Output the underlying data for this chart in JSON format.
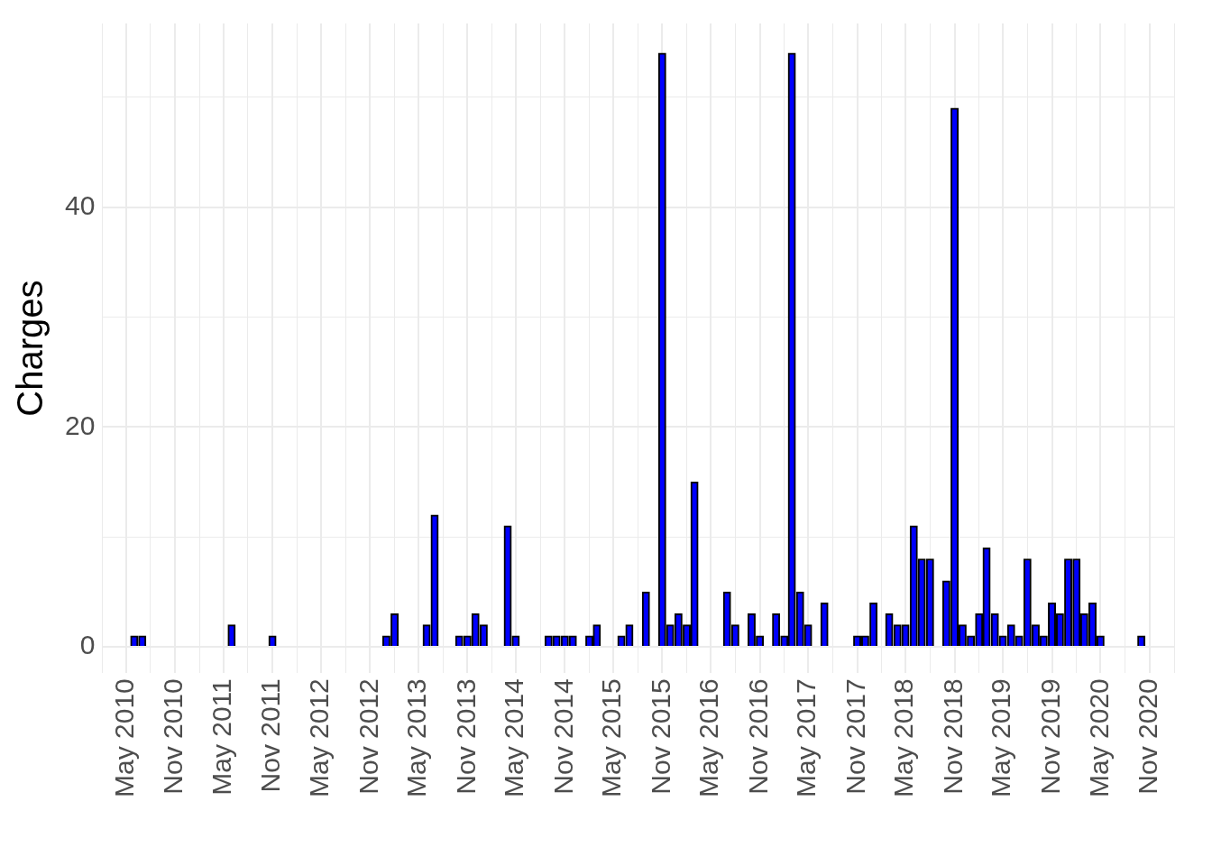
{
  "chart_data": {
    "type": "bar",
    "ylabel": "Charges",
    "color": "#0000ff",
    "grid": true,
    "legend": false,
    "x": [
      "2010-06",
      "2010-07",
      "2011-06",
      "2011-11",
      "2013-01",
      "2013-02",
      "2013-06",
      "2013-07",
      "2013-10",
      "2013-11",
      "2013-12",
      "2014-01",
      "2014-04",
      "2014-05",
      "2014-09",
      "2014-10",
      "2014-11",
      "2014-12",
      "2015-02",
      "2015-03",
      "2015-06",
      "2015-07",
      "2015-09",
      "2015-11",
      "2015-12",
      "2016-01",
      "2016-02",
      "2016-03",
      "2016-07",
      "2016-08",
      "2016-10",
      "2016-11",
      "2017-01",
      "2017-02",
      "2017-03",
      "2017-04",
      "2017-05",
      "2017-07",
      "2017-11",
      "2017-12",
      "2018-01",
      "2018-03",
      "2018-04",
      "2018-05",
      "2018-06",
      "2018-07",
      "2018-08",
      "2018-10",
      "2018-11",
      "2018-12",
      "2019-01",
      "2019-02",
      "2019-03",
      "2019-04",
      "2019-05",
      "2019-06",
      "2019-07",
      "2019-08",
      "2019-09",
      "2019-10",
      "2019-11",
      "2019-12",
      "2020-01",
      "2020-02",
      "2020-03",
      "2020-04",
      "2020-05",
      "2020-10"
    ],
    "values": [
      1,
      1,
      2,
      1,
      1,
      3,
      2,
      12,
      1,
      1,
      3,
      2,
      11,
      1,
      1,
      1,
      1,
      1,
      1,
      2,
      1,
      2,
      5,
      54,
      2,
      3,
      2,
      15,
      5,
      2,
      3,
      1,
      3,
      1,
      54,
      5,
      2,
      4,
      1,
      1,
      4,
      3,
      2,
      2,
      11,
      8,
      8,
      6,
      49,
      2,
      1,
      3,
      9,
      3,
      1,
      2,
      1,
      8,
      2,
      1,
      4,
      3,
      8,
      8,
      3,
      4,
      1,
      1
    ],
    "xlim": [
      "2010-02",
      "2021-02"
    ],
    "xticks": [
      {
        "value": "2010-02",
        "label": null
      },
      {
        "value": "2010-05",
        "label": "May 2010"
      },
      {
        "value": "2010-08",
        "label": null
      },
      {
        "value": "2010-11",
        "label": "Nov 2010"
      },
      {
        "value": "2011-02",
        "label": null
      },
      {
        "value": "2011-05",
        "label": "May 2011"
      },
      {
        "value": "2011-08",
        "label": null
      },
      {
        "value": "2011-11",
        "label": "Nov 2011"
      },
      {
        "value": "2012-02",
        "label": null
      },
      {
        "value": "2012-05",
        "label": "May 2012"
      },
      {
        "value": "2012-08",
        "label": null
      },
      {
        "value": "2012-11",
        "label": "Nov 2012"
      },
      {
        "value": "2013-02",
        "label": null
      },
      {
        "value": "2013-05",
        "label": "May 2013"
      },
      {
        "value": "2013-08",
        "label": null
      },
      {
        "value": "2013-11",
        "label": "Nov 2013"
      },
      {
        "value": "2014-02",
        "label": null
      },
      {
        "value": "2014-05",
        "label": "May 2014"
      },
      {
        "value": "2014-08",
        "label": null
      },
      {
        "value": "2014-11",
        "label": "Nov 2014"
      },
      {
        "value": "2015-02",
        "label": null
      },
      {
        "value": "2015-05",
        "label": "May 2015"
      },
      {
        "value": "2015-08",
        "label": null
      },
      {
        "value": "2015-11",
        "label": "Nov 2015"
      },
      {
        "value": "2016-02",
        "label": null
      },
      {
        "value": "2016-05",
        "label": "May 2016"
      },
      {
        "value": "2016-08",
        "label": null
      },
      {
        "value": "2016-11",
        "label": "Nov 2016"
      },
      {
        "value": "2017-02",
        "label": null
      },
      {
        "value": "2017-05",
        "label": "May 2017"
      },
      {
        "value": "2017-08",
        "label": null
      },
      {
        "value": "2017-11",
        "label": "Nov 2017"
      },
      {
        "value": "2018-02",
        "label": null
      },
      {
        "value": "2018-05",
        "label": "May 2018"
      },
      {
        "value": "2018-08",
        "label": null
      },
      {
        "value": "2018-11",
        "label": "Nov 2018"
      },
      {
        "value": "2019-02",
        "label": null
      },
      {
        "value": "2019-05",
        "label": "May 2019"
      },
      {
        "value": "2019-08",
        "label": null
      },
      {
        "value": "2019-11",
        "label": "Nov 2019"
      },
      {
        "value": "2020-02",
        "label": null
      },
      {
        "value": "2020-05",
        "label": "May 2020"
      },
      {
        "value": "2020-08",
        "label": null
      },
      {
        "value": "2020-11",
        "label": "Nov 2020"
      },
      {
        "value": "2021-02",
        "label": null
      }
    ],
    "ylim": [
      -2.4,
      56.7
    ],
    "yticks": [
      0,
      {
        "value": 10,
        "label": null
      },
      20,
      {
        "value": 30,
        "label": null
      },
      40,
      {
        "value": 50,
        "label": null
      }
    ]
  }
}
